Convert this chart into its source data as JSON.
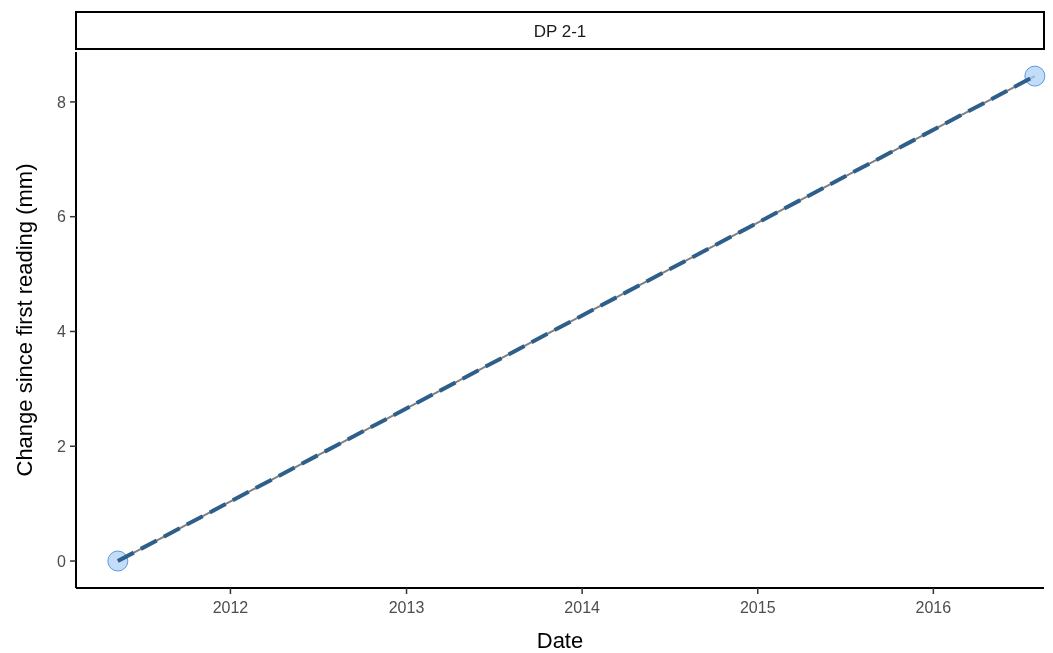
{
  "chart_data": {
    "type": "line",
    "title": "DP 2-1",
    "xlabel": "Date",
    "ylabel": "Change since first reading (mm)",
    "xlim": [
      "2011-02-14",
      "2016-08-18"
    ],
    "xticks": [
      {
        "value": "2012",
        "label": "2012"
      },
      {
        "value": "2013",
        "label": "2013"
      },
      {
        "value": "2014",
        "label": "2014"
      },
      {
        "value": "2015",
        "label": "2015"
      },
      {
        "value": "2016",
        "label": "2016"
      }
    ],
    "ylim": [
      -0.47,
      8.87
    ],
    "yticks": [
      0,
      2,
      4,
      6,
      8
    ],
    "grid": false,
    "series": [
      {
        "x": [
          "2011-05-12",
          "2016-07-30"
        ],
        "values": [
          0,
          8.45
        ],
        "color": "#808080",
        "marker": "circle",
        "line_style": "solid"
      },
      {
        "x": [
          "2011-05-12",
          "2016-07-30"
        ],
        "values": [
          0,
          8.45
        ],
        "color": "#2e5f8a",
        "marker": "none",
        "line_style": "dashed"
      }
    ]
  }
}
